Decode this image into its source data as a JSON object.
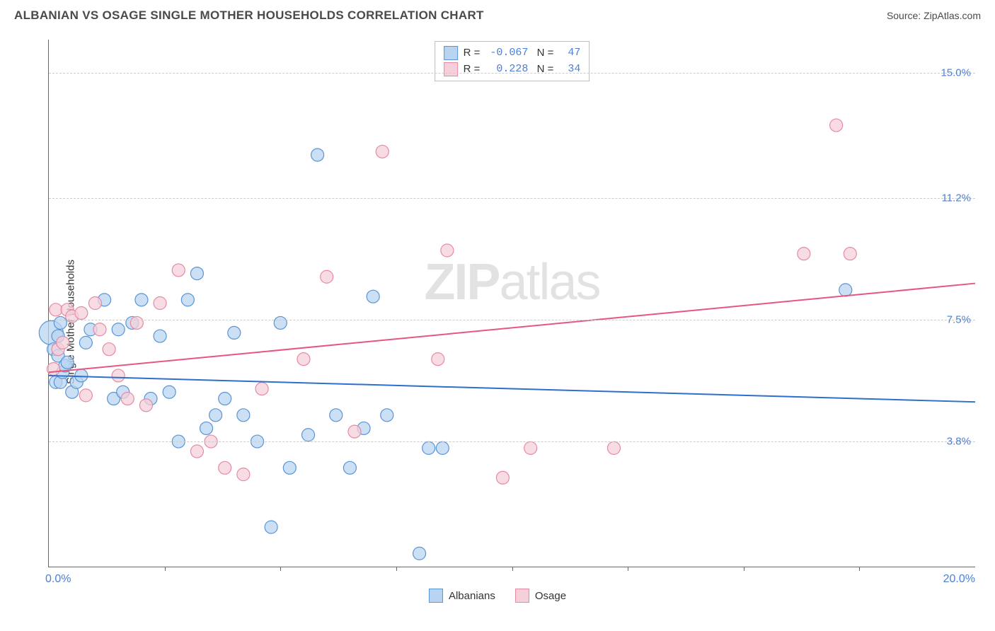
{
  "title": "ALBANIAN VS OSAGE SINGLE MOTHER HOUSEHOLDS CORRELATION CHART",
  "source_label": "Source:",
  "source_name": "ZipAtlas.com",
  "ylabel": "Single Mother Households",
  "watermark_bold": "ZIP",
  "watermark_light": "atlas",
  "chart": {
    "type": "scatter-with-regression",
    "xlim": [
      0,
      20
    ],
    "ylim": [
      0,
      16
    ],
    "xtick_step": 2.5,
    "xaxis_start_label": "0.0%",
    "xaxis_end_label": "20.0%",
    "ygrid": [
      {
        "value": 3.8,
        "label": "3.8%"
      },
      {
        "value": 7.5,
        "label": "7.5%"
      },
      {
        "value": 11.2,
        "label": "11.2%"
      },
      {
        "value": 15.0,
        "label": "15.0%"
      }
    ],
    "background_color": "#ffffff",
    "grid_color": "#cccccc",
    "axis_label_color": "#4a7fd8",
    "series": [
      {
        "name": "Albanians",
        "stats": {
          "R": "-0.067",
          "N": "47"
        },
        "color_fill": "#b9d4f1",
        "color_stroke": "#5a94d6",
        "line_color": "#2e6fc9",
        "marker_radius": 9,
        "regression": {
          "y_at_x0": 5.8,
          "y_at_xmax": 5.0
        },
        "points": [
          {
            "x": 0.05,
            "y": 7.1,
            "r": 17
          },
          {
            "x": 0.1,
            "y": 6.6
          },
          {
            "x": 0.15,
            "y": 5.6
          },
          {
            "x": 0.2,
            "y": 6.4
          },
          {
            "x": 0.2,
            "y": 7.0
          },
          {
            "x": 0.25,
            "y": 7.4
          },
          {
            "x": 0.25,
            "y": 5.6
          },
          {
            "x": 0.3,
            "y": 5.9
          },
          {
            "x": 0.35,
            "y": 6.1
          },
          {
            "x": 0.4,
            "y": 6.2
          },
          {
            "x": 0.5,
            "y": 5.3
          },
          {
            "x": 0.6,
            "y": 5.6
          },
          {
            "x": 0.7,
            "y": 5.8
          },
          {
            "x": 0.8,
            "y": 6.8
          },
          {
            "x": 0.9,
            "y": 7.2
          },
          {
            "x": 1.2,
            "y": 8.1
          },
          {
            "x": 1.4,
            "y": 5.1
          },
          {
            "x": 1.5,
            "y": 7.2
          },
          {
            "x": 1.6,
            "y": 5.3
          },
          {
            "x": 1.8,
            "y": 7.4
          },
          {
            "x": 2.0,
            "y": 8.1
          },
          {
            "x": 2.2,
            "y": 5.1
          },
          {
            "x": 2.4,
            "y": 7.0
          },
          {
            "x": 2.6,
            "y": 5.3
          },
          {
            "x": 2.8,
            "y": 3.8
          },
          {
            "x": 3.0,
            "y": 8.1
          },
          {
            "x": 3.2,
            "y": 8.9
          },
          {
            "x": 3.4,
            "y": 4.2
          },
          {
            "x": 3.6,
            "y": 4.6
          },
          {
            "x": 3.8,
            "y": 5.1
          },
          {
            "x": 4.0,
            "y": 7.1
          },
          {
            "x": 4.2,
            "y": 4.6
          },
          {
            "x": 4.5,
            "y": 3.8
          },
          {
            "x": 4.8,
            "y": 1.2
          },
          {
            "x": 5.0,
            "y": 7.4
          },
          {
            "x": 5.2,
            "y": 3.0
          },
          {
            "x": 5.6,
            "y": 4.0
          },
          {
            "x": 5.8,
            "y": 12.5
          },
          {
            "x": 6.2,
            "y": 4.6
          },
          {
            "x": 6.5,
            "y": 3.0
          },
          {
            "x": 6.8,
            "y": 4.2
          },
          {
            "x": 7.0,
            "y": 8.2
          },
          {
            "x": 7.3,
            "y": 4.6
          },
          {
            "x": 8.2,
            "y": 3.6
          },
          {
            "x": 8.5,
            "y": 3.6
          },
          {
            "x": 8.0,
            "y": 0.4
          },
          {
            "x": 17.2,
            "y": 8.4
          }
        ]
      },
      {
        "name": "Osage",
        "stats": {
          "R": "0.228",
          "N": "34"
        },
        "color_fill": "#f5d0da",
        "color_stroke": "#e68aa4",
        "line_color": "#e6567e",
        "marker_radius": 9,
        "regression": {
          "y_at_x0": 5.9,
          "y_at_xmax": 8.6
        },
        "points": [
          {
            "x": 0.1,
            "y": 6.0
          },
          {
            "x": 0.15,
            "y": 7.8
          },
          {
            "x": 0.2,
            "y": 6.6
          },
          {
            "x": 0.3,
            "y": 6.8
          },
          {
            "x": 0.4,
            "y": 7.8
          },
          {
            "x": 0.5,
            "y": 7.6
          },
          {
            "x": 0.7,
            "y": 7.7
          },
          {
            "x": 0.8,
            "y": 5.2
          },
          {
            "x": 1.0,
            "y": 8.0
          },
          {
            "x": 1.1,
            "y": 7.2
          },
          {
            "x": 1.3,
            "y": 6.6
          },
          {
            "x": 1.5,
            "y": 5.8
          },
          {
            "x": 1.7,
            "y": 5.1
          },
          {
            "x": 1.9,
            "y": 7.4
          },
          {
            "x": 2.1,
            "y": 4.9
          },
          {
            "x": 2.4,
            "y": 8.0
          },
          {
            "x": 2.8,
            "y": 9.0
          },
          {
            "x": 3.2,
            "y": 3.5
          },
          {
            "x": 3.5,
            "y": 3.8
          },
          {
            "x": 3.8,
            "y": 3.0
          },
          {
            "x": 4.2,
            "y": 2.8
          },
          {
            "x": 4.6,
            "y": 5.4
          },
          {
            "x": 5.5,
            "y": 6.3
          },
          {
            "x": 6.0,
            "y": 8.8
          },
          {
            "x": 6.6,
            "y": 4.1
          },
          {
            "x": 7.2,
            "y": 12.6
          },
          {
            "x": 8.4,
            "y": 6.3
          },
          {
            "x": 8.6,
            "y": 9.6
          },
          {
            "x": 9.8,
            "y": 2.7
          },
          {
            "x": 10.4,
            "y": 3.6
          },
          {
            "x": 12.2,
            "y": 3.6
          },
          {
            "x": 16.3,
            "y": 9.5
          },
          {
            "x": 17.0,
            "y": 13.4
          },
          {
            "x": 17.3,
            "y": 9.5
          }
        ]
      }
    ]
  },
  "legend_bottom": [
    {
      "label": "Albanians",
      "fill": "#b9d4f1",
      "stroke": "#5a94d6"
    },
    {
      "label": "Osage",
      "fill": "#f5d0da",
      "stroke": "#e68aa4"
    }
  ]
}
